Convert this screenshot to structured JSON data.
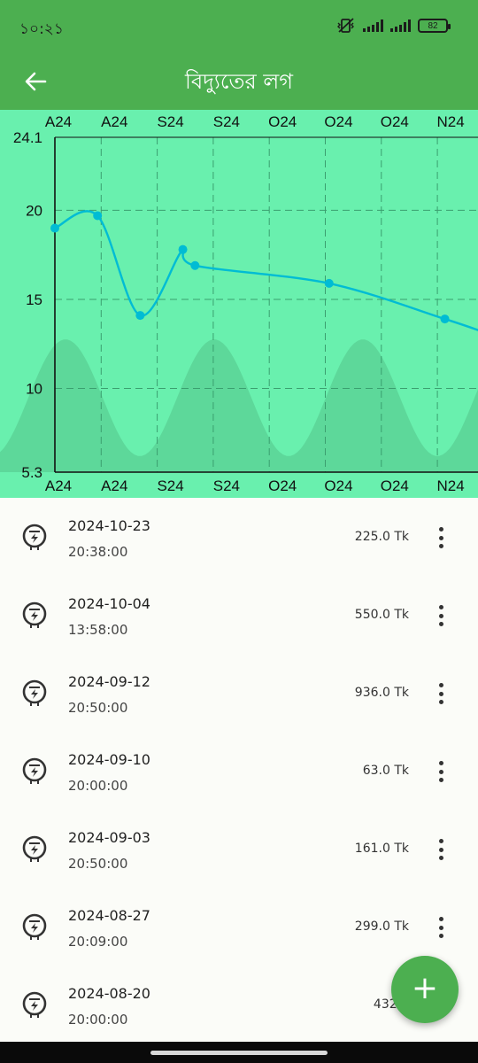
{
  "status": {
    "time": "১০:২১",
    "battery": "82"
  },
  "appbar": {
    "title": "বিদ্যুতের লগ",
    "back_icon": "arrow-back-icon"
  },
  "chart_data": {
    "type": "line",
    "x_tick_labels_top": [
      "A24",
      "A24",
      "S24",
      "S24",
      "O24",
      "O24",
      "O24",
      "N24"
    ],
    "x_tick_labels_bottom": [
      "A24",
      "A24",
      "S24",
      "S24",
      "O24",
      "O24",
      "O24",
      "N24"
    ],
    "y_tick_labels": [
      "24.1",
      "20",
      "15",
      "10",
      "5.3"
    ],
    "ylim": [
      5.3,
      24.1
    ],
    "series": [
      {
        "x": [
          "2024-08-20",
          "2024-08-27",
          "2024-09-03",
          "2024-09-10",
          "2024-09-12",
          "2024-10-04",
          "2024-10-23"
        ],
        "values": [
          19.0,
          19.7,
          14.1,
          17.8,
          16.9,
          15.9,
          13.9
        ]
      }
    ],
    "grid": true,
    "line_color": "#00bcd4",
    "background_color": "#69f0ae",
    "wave_color": "#5cd396"
  },
  "entries": [
    {
      "date": "2024-10-23",
      "time": "20:38:00",
      "amount": "225.0 Tk"
    },
    {
      "date": "2024-10-04",
      "time": "13:58:00",
      "amount": "550.0 Tk"
    },
    {
      "date": "2024-09-12",
      "time": "20:50:00",
      "amount": "936.0 Tk"
    },
    {
      "date": "2024-09-10",
      "time": "20:00:00",
      "amount": "63.0 Tk"
    },
    {
      "date": "2024-09-03",
      "time": "20:50:00",
      "amount": "161.0 Tk"
    },
    {
      "date": "2024-08-27",
      "time": "20:09:00",
      "amount": "299.0 Tk"
    },
    {
      "date": "2024-08-20",
      "time": "20:00:00",
      "amount": "432.0"
    }
  ],
  "entry_icon": "electric-meter-icon",
  "menu_icon": "more-vert-icon",
  "fab": {
    "label": "+",
    "icon": "add-icon"
  },
  "colors": {
    "primary": "#4caf50",
    "chart_bg": "#69f0ae",
    "line": "#00bcd4"
  }
}
